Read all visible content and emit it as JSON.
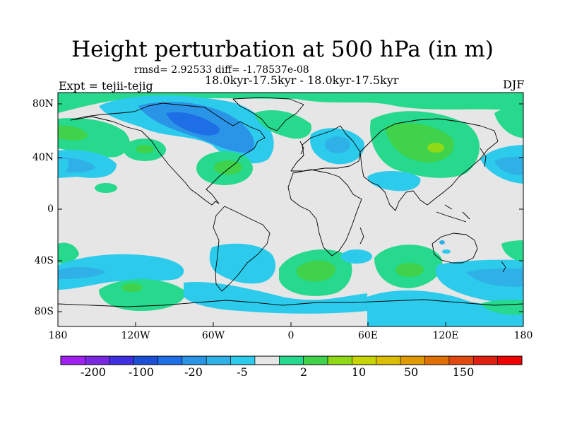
{
  "title": "Height perturbation at 500 hPa (in m)",
  "stats_line": "rmsd= 2.92533 diff= -1.78537e-08",
  "period_line": "18.0kyr-17.5kyr - 18.0kyr-17.5kyr",
  "experiment_line": "Expt = tejii-tejig",
  "season": "DJF",
  "lat_labels": [
    "80N",
    "40N",
    "0",
    "40S",
    "80S"
  ],
  "lon_labels": [
    "180",
    "120W",
    "60W",
    "0",
    "60E",
    "120E",
    "180"
  ],
  "colorbar": {
    "colors": [
      "#a020f0",
      "#7a28e0",
      "#3f2fe0",
      "#1a4fd6",
      "#1e6ee6",
      "#2a95e6",
      "#2fb1e8",
      "#2ccbec",
      "#e6e6e6",
      "#26d98c",
      "#3fd24a",
      "#90d916",
      "#c8d400",
      "#dcbe00",
      "#e09a00",
      "#e07000",
      "#e04a10",
      "#e02010",
      "#f00000"
    ],
    "labels": [
      "-200",
      "-100",
      "-20",
      "-5",
      "2",
      "10",
      "50",
      "150"
    ]
  },
  "palette": {
    "neutral": "#e6e6e6",
    "light_green": "#26d98c",
    "green": "#3fd24a",
    "yellow_green": "#90d916",
    "light_blue": "#2ccbec",
    "blue": "#2fb1e8",
    "mid_blue": "#2a95e6",
    "deep_blue": "#1e6ee6"
  }
}
